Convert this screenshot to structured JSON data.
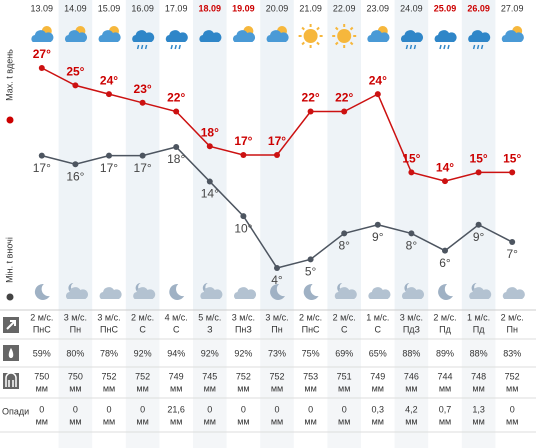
{
  "labels": {
    "max": "Мах. t вдень",
    "min": "Мін. t вночі",
    "precip": "Опади",
    "unit": "мм"
  },
  "days": [
    {
      "date": "13.09",
      "weekend": false,
      "max": 27,
      "max_label": "27°",
      "min": 17,
      "min_label": "17°",
      "wind": [
        "2 м/с.",
        "ПнС"
      ],
      "humidity": "59%",
      "pressure": "750",
      "precip": "0"
    },
    {
      "date": "14.09",
      "weekend": false,
      "max": 25,
      "max_label": "25°",
      "min": 16,
      "min_label": "16°",
      "wind": [
        "3 м/с.",
        "Пн"
      ],
      "humidity": "80%",
      "pressure": "750",
      "precip": "0"
    },
    {
      "date": "15.09",
      "weekend": false,
      "max": 24,
      "max_label": "24°",
      "min": 17,
      "min_label": "17°",
      "wind": [
        "3 м/с.",
        "ПнС"
      ],
      "humidity": "78%",
      "pressure": "752",
      "precip": "0"
    },
    {
      "date": "16.09",
      "weekend": false,
      "max": 23,
      "max_label": "23°",
      "min": 17,
      "min_label": "17°",
      "wind": [
        "2 м/с.",
        "С"
      ],
      "humidity": "92%",
      "pressure": "752",
      "precip": "0"
    },
    {
      "date": "17.09",
      "weekend": false,
      "max": 22,
      "max_label": "22°",
      "min": 18,
      "min_label": "18°",
      "wind": [
        "4 м/с.",
        "С"
      ],
      "humidity": "94%",
      "pressure": "749",
      "precip": "21,6"
    },
    {
      "date": "18.09",
      "weekend": true,
      "max": 18,
      "max_label": "18°",
      "min": 14,
      "min_label": "14°",
      "wind": [
        "5 м/с.",
        "З"
      ],
      "humidity": "92%",
      "pressure": "745",
      "precip": "0"
    },
    {
      "date": "19.09",
      "weekend": true,
      "max": 17,
      "max_label": "17°",
      "min": 10,
      "min_label": "10°",
      "wind": [
        "3 м/с.",
        "ПнЗ"
      ],
      "humidity": "92%",
      "pressure": "752",
      "precip": "0"
    },
    {
      "date": "20.09",
      "weekend": false,
      "max": 17,
      "max_label": "17°",
      "min": 4,
      "min_label": "4°",
      "wind": [
        "3 м/с.",
        "Пн"
      ],
      "humidity": "73%",
      "pressure": "752",
      "precip": "0"
    },
    {
      "date": "21.09",
      "weekend": false,
      "max": 22,
      "max_label": "22°",
      "min": 5,
      "min_label": "5°",
      "wind": [
        "2 м/с.",
        "ПнС"
      ],
      "humidity": "75%",
      "pressure": "753",
      "precip": "0"
    },
    {
      "date": "22.09",
      "weekend": false,
      "max": 22,
      "max_label": "22°",
      "min": 8,
      "min_label": "8°",
      "wind": [
        "2 м/с.",
        "С"
      ],
      "humidity": "69%",
      "pressure": "751",
      "precip": "0"
    },
    {
      "date": "23.09",
      "weekend": false,
      "max": 24,
      "max_label": "24°",
      "min": 9,
      "min_label": "9°",
      "wind": [
        "1 м/с.",
        "С"
      ],
      "humidity": "65%",
      "pressure": "749",
      "precip": "0,3"
    },
    {
      "date": "24.09",
      "weekend": false,
      "max": 15,
      "max_label": "15°",
      "min": 8,
      "min_label": "8°",
      "wind": [
        "3 м/с.",
        "ПдЗ"
      ],
      "humidity": "88%",
      "pressure": "746",
      "precip": "4,2"
    },
    {
      "date": "25.09",
      "weekend": true,
      "max": 14,
      "max_label": "14°",
      "min": 6,
      "min_label": "6°",
      "wind": [
        "2 м/с.",
        "Пд"
      ],
      "humidity": "89%",
      "pressure": "744",
      "precip": "0,7"
    },
    {
      "date": "26.09",
      "weekend": true,
      "max": 15,
      "max_label": "15°",
      "min": 9,
      "min_label": "9°",
      "wind": [
        "1 м/с.",
        "Пд"
      ],
      "humidity": "88%",
      "pressure": "748",
      "precip": "1,3"
    },
    {
      "date": "27.09",
      "weekend": false,
      "max": 15,
      "max_label": "15°",
      "min": 7,
      "min_label": "7°",
      "wind": [
        "2 м/с.",
        "Пн"
      ],
      "humidity": "83%",
      "pressure": "752",
      "precip": "0"
    }
  ]
}
